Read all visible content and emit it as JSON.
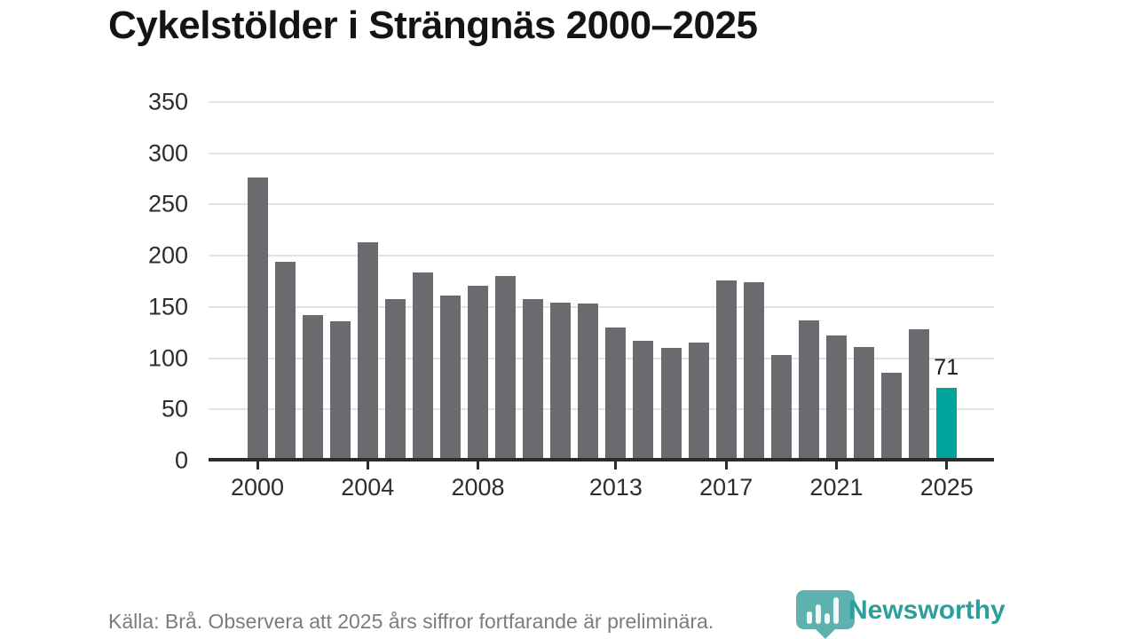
{
  "title": "Cykelstölder i Strängnäs 2000–2025",
  "chart_data": {
    "type": "bar",
    "title": "Cykelstölder i Strängnäs 2000–2025",
    "x": [
      2000,
      2001,
      2002,
      2003,
      2004,
      2005,
      2006,
      2007,
      2008,
      2009,
      2010,
      2011,
      2012,
      2013,
      2014,
      2015,
      2016,
      2017,
      2018,
      2019,
      2020,
      2021,
      2022,
      2023,
      2024,
      2025
    ],
    "values": [
      276,
      194,
      142,
      136,
      213,
      158,
      184,
      161,
      171,
      180,
      158,
      154,
      153,
      130,
      117,
      110,
      115,
      176,
      174,
      103,
      137,
      122,
      111,
      86,
      128,
      71
    ],
    "ylim": [
      0,
      350
    ],
    "yticks": [
      0,
      50,
      100,
      150,
      200,
      250,
      300,
      350
    ],
    "xtick_years": [
      2000,
      2004,
      2008,
      2013,
      2017,
      2021,
      2025
    ],
    "grid": "horizontal",
    "legend": "none",
    "bar_color": "#6a6a6f",
    "highlight_color": "#00a49a",
    "highlight_year": 2025,
    "annotation": {
      "year": 2025,
      "text": "71"
    }
  },
  "footer": {
    "source_note": "Källa: Brå. Observera att 2025 års siffror fortfarande är preliminära."
  },
  "logo": {
    "brand": "Newsworthy",
    "icon": "newsworthy-pin-icon",
    "color": "#2e9e9c"
  }
}
